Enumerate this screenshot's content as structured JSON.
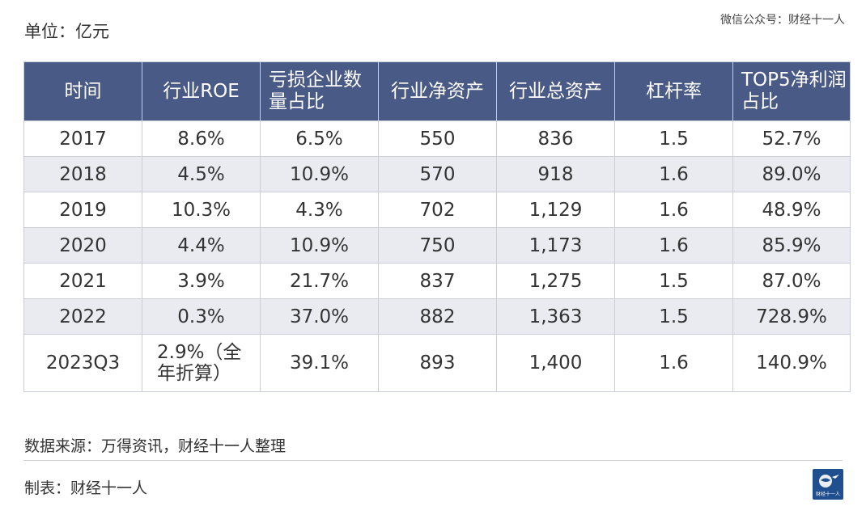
{
  "unit_label": "单位：亿元",
  "watermark": "微信公众号：财经十一人",
  "table": {
    "headers": [
      "时间",
      "行业ROE",
      "亏损企业数量占比",
      "行业净资产",
      "行业总资产",
      "杠杆率",
      "TOP5净利润占比"
    ],
    "rows": [
      [
        "2017",
        "8.6%",
        "6.5%",
        "550",
        "836",
        "1.5",
        "52.7%"
      ],
      [
        "2018",
        "4.5%",
        "10.9%",
        "570",
        "918",
        "1.6",
        "89.0%"
      ],
      [
        "2019",
        "10.3%",
        "4.3%",
        "702",
        "1,129",
        "1.6",
        "48.9%"
      ],
      [
        "2020",
        "4.4%",
        "10.9%",
        "750",
        "1,173",
        "1.6",
        "85.9%"
      ],
      [
        "2021",
        "3.9%",
        "21.7%",
        "837",
        "1,275",
        "1.5",
        "87.0%"
      ],
      [
        "2022",
        "0.3%",
        "37.0%",
        "882",
        "1,363",
        "1.5",
        "728.9%"
      ],
      [
        "2023Q3",
        "2.9%（全年折算）",
        "39.1%",
        "893",
        "1,400",
        "1.6",
        "140.9%"
      ]
    ]
  },
  "source_text": "数据来源：万得资讯，财经十一人整理",
  "maker_text": "制表：财经十一人",
  "logo_text": "财经十一人",
  "colors": {
    "header_bg": "#4a5a86",
    "even_row_bg": "#e9ebf1",
    "border": "#c9ced8",
    "logo_bg": "#1f4f8f"
  }
}
